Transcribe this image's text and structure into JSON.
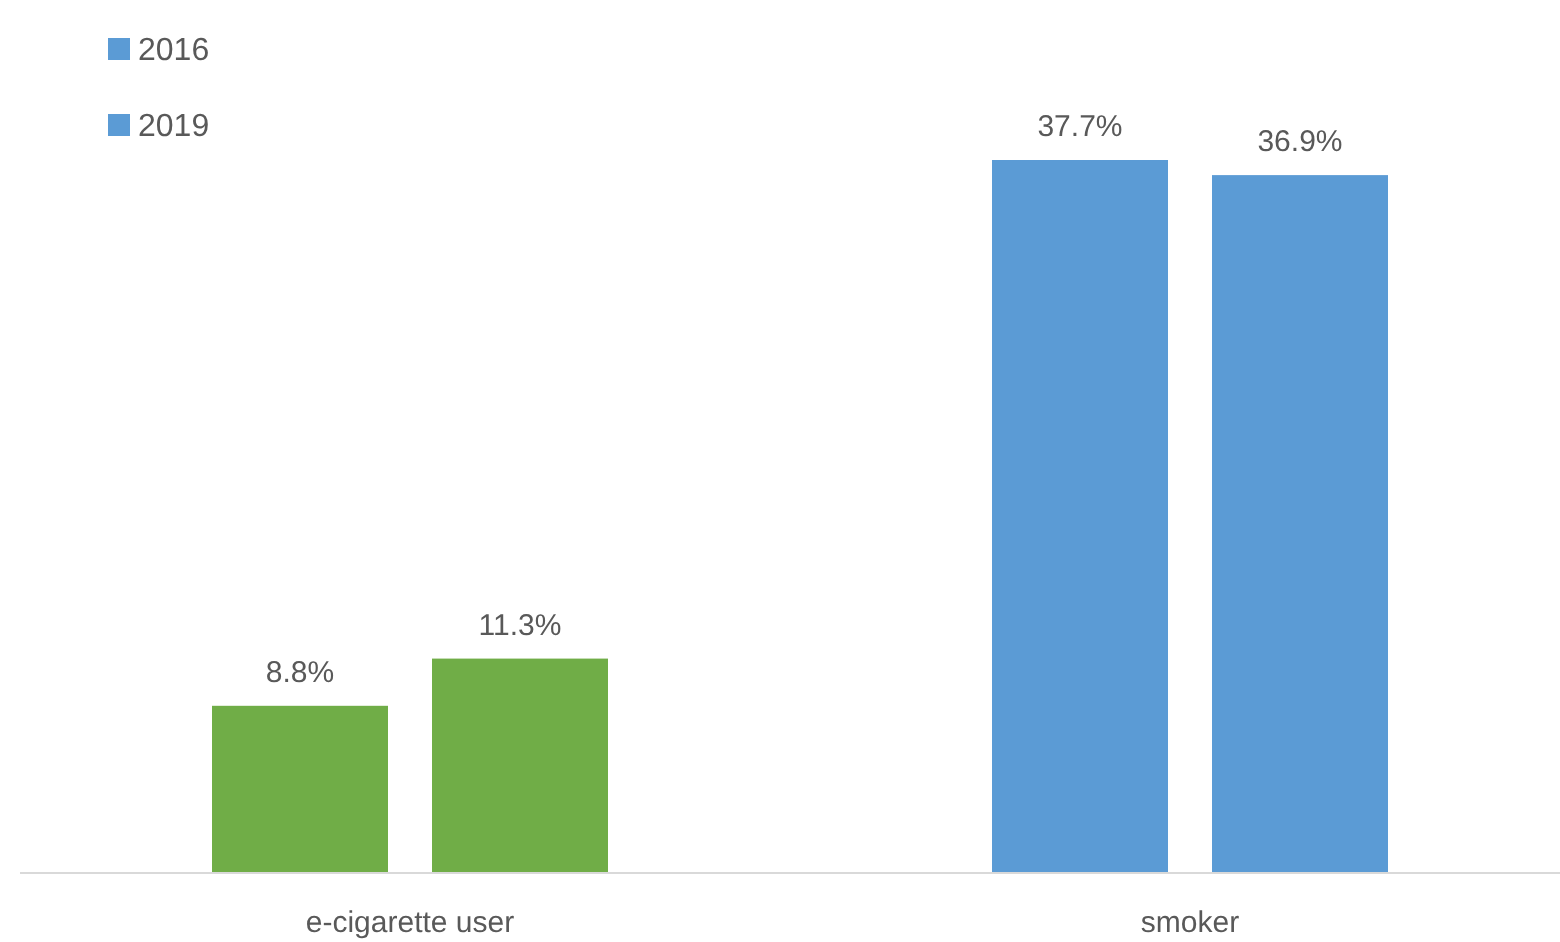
{
  "chart_data": {
    "type": "bar",
    "categories": [
      "e-cigarette user",
      "smoker"
    ],
    "series": [
      {
        "name": "2016",
        "color": "#5b9bd5",
        "colors": [
          "#70ad47",
          "#5b9bd5"
        ],
        "values": [
          8.8,
          37.7
        ],
        "value_labels": [
          "8.8%",
          "37.7%"
        ]
      },
      {
        "name": "2019",
        "color": "#5b9bd5",
        "colors": [
          "#70ad47",
          "#5b9bd5"
        ],
        "values": [
          11.3,
          36.9
        ],
        "value_labels": [
          "11.3%",
          "36.9%"
        ]
      }
    ],
    "legend": "top left"
  }
}
